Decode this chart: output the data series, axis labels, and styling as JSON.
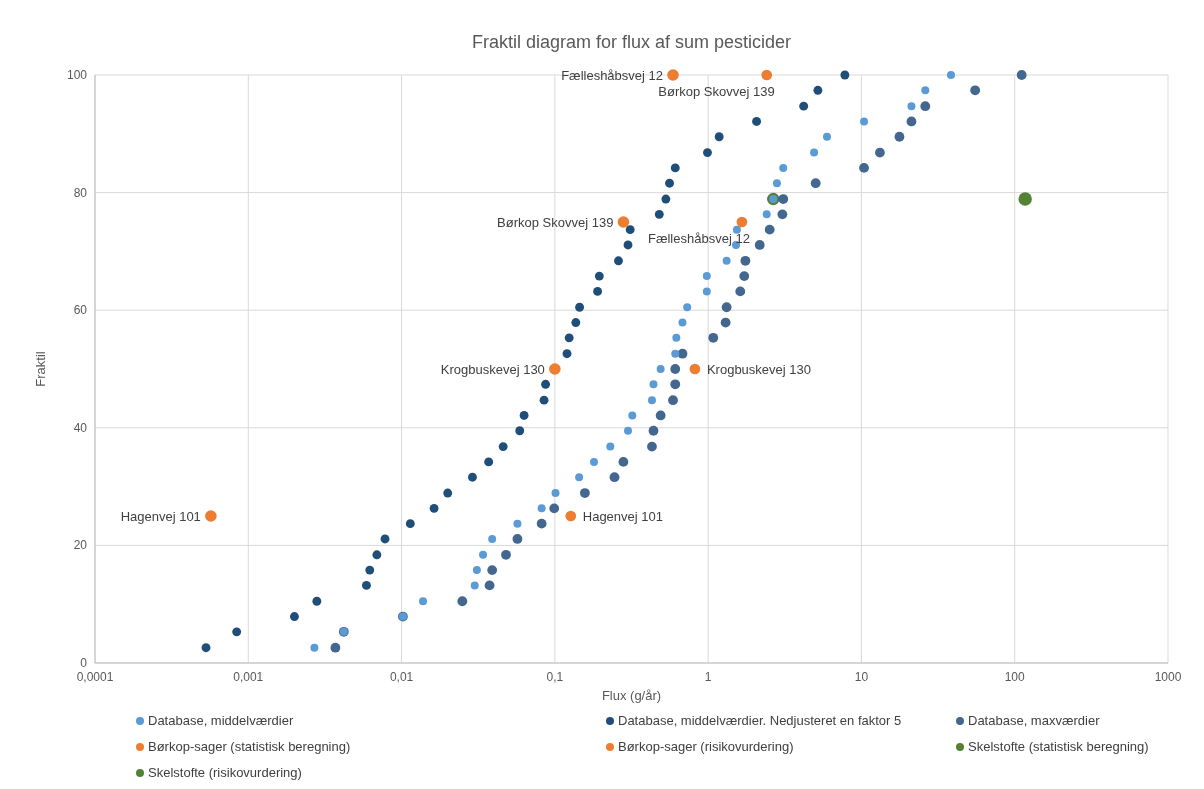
{
  "chart_data": {
    "type": "scatter",
    "title": "Fraktil diagram for flux af sum pesticider",
    "xlabel": "Flux (g/år)",
    "ylabel": "Fraktil",
    "log": "x",
    "xlim": [
      0.0001,
      1000
    ],
    "ylim": [
      0,
      100
    ],
    "xticks": [
      {
        "value": 0.0001,
        "label": "0,0001"
      },
      {
        "value": 0.001,
        "label": "0,001"
      },
      {
        "value": 0.01,
        "label": "0,01"
      },
      {
        "value": 0.1,
        "label": "0,1"
      },
      1,
      10,
      100,
      1000
    ],
    "yticks": [
      0,
      20,
      40,
      60,
      80,
      100
    ],
    "grid": true,
    "legend": "bottom",
    "marker": "circle",
    "series": [
      {
        "name": "Database, middelværdier",
        "color": "#5b9bd5",
        "x": [
          0.0027,
          0.0042,
          0.0102,
          0.0138,
          0.03,
          0.031,
          0.034,
          0.039,
          0.057,
          0.082,
          0.101,
          0.144,
          0.18,
          0.23,
          0.3,
          0.32,
          0.43,
          0.44,
          0.49,
          0.61,
          0.62,
          0.68,
          0.73,
          0.98,
          0.98,
          1.32,
          1.52,
          1.54,
          2.41,
          2.66,
          2.81,
          3.09,
          4.91,
          5.96,
          10.4,
          21.2,
          26.1,
          38.4
        ],
        "values": [
          2.6,
          5.3,
          7.9,
          10.5,
          13.2,
          15.8,
          18.4,
          21.1,
          23.7,
          26.3,
          28.9,
          31.6,
          34.2,
          36.8,
          39.5,
          42.1,
          44.7,
          47.4,
          50,
          52.6,
          55.3,
          57.9,
          60.5,
          63.2,
          65.8,
          68.4,
          71.1,
          73.7,
          76.3,
          78.9,
          81.6,
          84.2,
          86.8,
          89.5,
          92.1,
          94.7,
          97.4,
          100
        ]
      },
      {
        "name": "Database, middelværdier. Nedjusteret en faktor 5",
        "color": "#1f4e79",
        "x": [
          0.00053,
          0.00084,
          0.002,
          0.0028,
          0.0059,
          0.0062,
          0.0069,
          0.0078,
          0.0114,
          0.0163,
          0.02,
          0.029,
          0.037,
          0.046,
          0.059,
          0.063,
          0.085,
          0.087,
          0.12,
          0.124,
          0.137,
          0.145,
          0.19,
          0.195,
          0.26,
          0.3,
          0.31,
          0.48,
          0.53,
          0.56,
          0.61,
          0.99,
          1.18,
          2.07,
          4.2,
          5.2,
          7.8
        ],
        "values": [
          2.6,
          5.3,
          7.9,
          10.5,
          13.2,
          15.8,
          18.4,
          21.1,
          23.7,
          26.3,
          28.9,
          31.6,
          34.2,
          36.8,
          39.5,
          42.1,
          44.7,
          47.4,
          52.6,
          55.3,
          57.9,
          60.5,
          63.2,
          65.8,
          68.4,
          71.1,
          73.7,
          76.3,
          78.9,
          81.6,
          84.2,
          86.8,
          89.5,
          92.1,
          94.7,
          97.4,
          100
        ]
      },
      {
        "name": "Database, maxværdier",
        "color": "#44678f",
        "x": [
          0.0037,
          0.0042,
          0.0102,
          0.0249,
          0.0375,
          0.039,
          0.048,
          0.057,
          0.082,
          0.099,
          0.157,
          0.245,
          0.28,
          0.43,
          0.44,
          0.49,
          0.59,
          0.61,
          0.61,
          0.68,
          1.08,
          1.3,
          1.32,
          1.62,
          1.72,
          1.75,
          2.17,
          2.52,
          3.05,
          3.09,
          5.03,
          10.4,
          13.2,
          17.7,
          21.2,
          26.1,
          55.2,
          111
        ],
        "values": [
          2.6,
          5.3,
          7.9,
          10.5,
          13.2,
          15.8,
          18.4,
          21.1,
          23.7,
          26.3,
          28.9,
          31.6,
          34.2,
          36.8,
          39.5,
          42.1,
          44.7,
          47.4,
          50,
          52.6,
          55.3,
          57.9,
          60.5,
          63.2,
          65.8,
          68.4,
          71.1,
          73.7,
          76.3,
          78.9,
          81.6,
          84.2,
          86.8,
          89.5,
          92.1,
          94.7,
          97.4,
          100
        ]
      },
      {
        "name": "Børkop-sager (statistisk beregning)",
        "color": "#ed7d31",
        "x": [
          0.127,
          0.82,
          1.66,
          2.41
        ],
        "values": [
          25,
          50,
          75,
          100
        ]
      },
      {
        "name": "Børkop-sager (risikovurdering)",
        "color": "#ed7d31",
        "x": [
          0.00057,
          0.1,
          0.28,
          0.59
        ],
        "values": [
          25,
          50,
          75,
          100
        ]
      },
      {
        "name": "Skelstofte (statistisk beregning)",
        "color": "#548235",
        "x": [
          2.66
        ],
        "values": [
          78.9
        ]
      },
      {
        "name": "Skelstofte (risikovurdering)",
        "color": "#548235",
        "x": [
          117
        ],
        "values": [
          78.9
        ]
      }
    ],
    "annotations": [
      {
        "text": "Hagenvej 101",
        "x": 0.00057,
        "y": 25
      },
      {
        "text": "Krogbuskevej 130",
        "x": 0.1,
        "y": 50
      },
      {
        "text": "Børkop Skovvej 139",
        "x": 0.28,
        "y": 75
      },
      {
        "text": "Fælleshåbsvej 12",
        "x": 0.59,
        "y": 100
      },
      {
        "text": "Hagenvej 101",
        "x": 0.127,
        "y": 25
      },
      {
        "text": "Krogbuskevej 130",
        "x": 0.82,
        "y": 50
      },
      {
        "text": "Fælleshåbsvej 12",
        "x": 1.66,
        "y": 75
      },
      {
        "text": "Børkop Skovvej 139",
        "x": 2.41,
        "y": 100
      }
    ]
  }
}
